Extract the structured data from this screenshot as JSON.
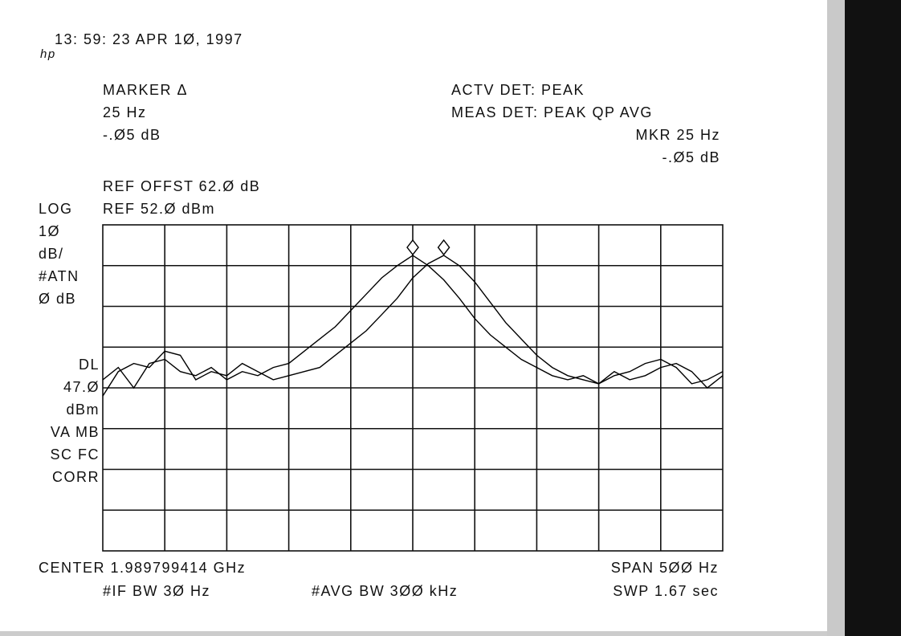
{
  "header": {
    "logo": "hp",
    "timestamp": "13: 59: 23 APR 1Ø, 1997"
  },
  "marker": {
    "label": "MARKER Δ",
    "freq": "25 Hz",
    "level": "-.Ø5 dB"
  },
  "detector": {
    "actv": "ACTV DET: PEAK",
    "meas": "MEAS DET: PEAK QP AVG",
    "mkr_freq": "MKR 25 Hz",
    "mkr_level": "-.Ø5 dB"
  },
  "ref": {
    "offset": "REF OFFST 62.Ø dB",
    "level": "REF 52.Ø dBm"
  },
  "left_panel": {
    "top": [
      "LOG",
      "1Ø",
      "dB/",
      "#ATN",
      "Ø dB"
    ],
    "bottom": [
      "DL",
      "47.Ø",
      "dBm",
      "VA MB",
      "SC FC",
      "CORR"
    ]
  },
  "footer": {
    "center": "CENTER 1.989799414 GHz",
    "span": "SPAN 5ØØ Hz",
    "if_bw": "#IF BW 3Ø Hz",
    "avg_bw": "#AVG BW 3ØØ kHz",
    "sweep": "SWP 1.67  sec"
  },
  "trace": {
    "xlim": [
      -250,
      250
    ],
    "ylim": [
      -28,
      52
    ],
    "x": [
      -250,
      -237.5,
      -225,
      -212.5,
      -200,
      -187.5,
      -175,
      -162.5,
      -150,
      -137.5,
      -125,
      -112.5,
      -100,
      -87.5,
      -75,
      -62.5,
      -50,
      -37.5,
      -25,
      -12.5,
      0,
      12.5,
      25,
      37.5,
      50,
      62.5,
      75,
      87.5,
      100,
      112.5,
      125,
      137.5,
      150,
      162.5,
      175,
      187.5,
      200,
      212.5,
      225,
      237.5,
      250
    ],
    "series": [
      {
        "color": "#000000",
        "values": [
          14,
          17,
          12,
          18,
          19,
          16,
          15,
          17,
          14,
          16,
          15,
          17,
          18,
          21,
          24,
          27,
          31,
          35,
          39,
          42,
          44.5,
          42,
          38.5,
          34,
          29,
          25,
          22,
          19,
          17,
          15,
          14,
          15,
          13,
          16,
          14,
          15,
          17,
          18,
          16,
          12,
          15
        ]
      },
      {
        "color": "#000000",
        "values": [
          10,
          16,
          18,
          17,
          21,
          20,
          14,
          16,
          15,
          18,
          16,
          14,
          15,
          16,
          17,
          20,
          23,
          26,
          30,
          34,
          39,
          42.5,
          44.5,
          42,
          38,
          33,
          28,
          24,
          20,
          17,
          15,
          14,
          13,
          15,
          16,
          18,
          19,
          17,
          13,
          14,
          16
        ]
      }
    ]
  }
}
